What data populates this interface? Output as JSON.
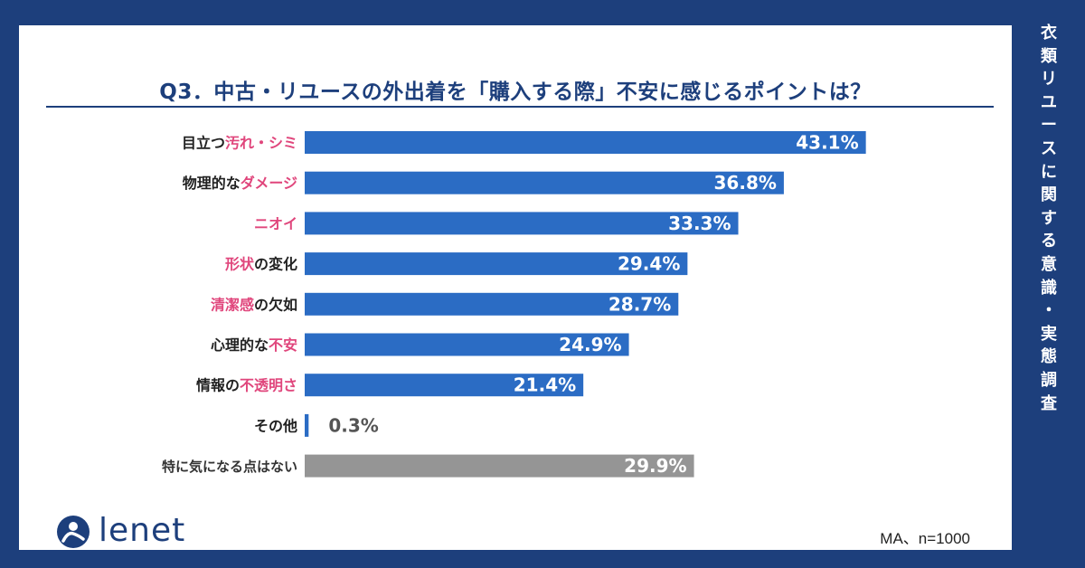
{
  "side_title": "衣類リユースに関する意識・実態調査",
  "brand": "lenet",
  "note": "MA、n=1000",
  "colors": {
    "background": "#1d3f7c",
    "bar": "#2b6cc4",
    "bar_none": "#959595",
    "highlight_text": "#e0467c",
    "label_text": "#222222"
  },
  "chart_data": {
    "type": "bar",
    "orientation": "horizontal",
    "title": "Q3．中古・リユースの外出着を「購入する際」不安に感じるポイントは？",
    "categories": [
      [
        {
          "t": "目立つ",
          "hl": false
        },
        {
          "t": "汚れ・シミ",
          "hl": true
        }
      ],
      [
        {
          "t": "物理的な",
          "hl": false
        },
        {
          "t": "ダメージ",
          "hl": true
        }
      ],
      [
        {
          "t": "ニオイ",
          "hl": true
        }
      ],
      [
        {
          "t": "形状",
          "hl": true
        },
        {
          "t": "の変化",
          "hl": false
        }
      ],
      [
        {
          "t": "清潔感",
          "hl": true
        },
        {
          "t": "の欠如",
          "hl": false
        }
      ],
      [
        {
          "t": "心理的な",
          "hl": false
        },
        {
          "t": "不安",
          "hl": true
        }
      ],
      [
        {
          "t": "情報の",
          "hl": false
        },
        {
          "t": "不透明さ",
          "hl": true
        }
      ],
      [
        {
          "t": "その他",
          "hl": false
        }
      ],
      [
        {
          "t": "特に気になる点はない",
          "hl": false
        }
      ]
    ],
    "values": [
      43.1,
      36.8,
      33.3,
      29.4,
      28.7,
      24.9,
      21.4,
      0.3,
      29.9
    ],
    "value_labels": [
      "43.1%",
      "36.8%",
      "33.3%",
      "29.4%",
      "28.7%",
      "24.9%",
      "21.4%",
      "0.3%",
      "29.9%"
    ],
    "special_gray_index": 8,
    "grid": false,
    "legend": "none"
  }
}
